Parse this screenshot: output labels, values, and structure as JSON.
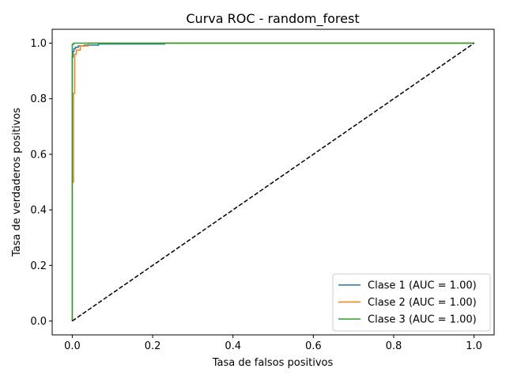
{
  "chart_data": {
    "type": "line",
    "title": "Curva ROC - random_forest",
    "xlabel": "Tasa de falsos positivos",
    "ylabel": "Tasa de verdaderos positivos",
    "xlim": [
      -0.05,
      1.05
    ],
    "ylim": [
      -0.05,
      1.05
    ],
    "xticks": [
      "0.0",
      "0.2",
      "0.4",
      "0.6",
      "0.8",
      "1.0"
    ],
    "yticks": [
      "0.0",
      "0.2",
      "0.4",
      "0.6",
      "0.8",
      "1.0"
    ],
    "xtick_values": [
      0.0,
      0.2,
      0.4,
      0.6,
      0.8,
      1.0
    ],
    "ytick_values": [
      0.0,
      0.2,
      0.4,
      0.6,
      0.8,
      1.0
    ],
    "grid": false,
    "legend_position": "lower-right",
    "diagonal": {
      "x": [
        0,
        1
      ],
      "y": [
        0,
        1
      ],
      "color": "#000000",
      "style": "dashed"
    },
    "series": [
      {
        "name": "Clase 1 (AUC = 1.00)",
        "color": "#1f77b4",
        "x": [
          0.0,
          0.0,
          0.002,
          0.002,
          0.004,
          0.004,
          0.008,
          0.008,
          0.015,
          0.015,
          0.03,
          0.03,
          0.065,
          0.065,
          0.23,
          0.23,
          1.0
        ],
        "y": [
          0.0,
          0.95,
          0.95,
          0.97,
          0.97,
          0.98,
          0.98,
          0.985,
          0.985,
          0.99,
          0.99,
          0.993,
          0.993,
          0.997,
          0.997,
          1.0,
          1.0
        ]
      },
      {
        "name": "Clase 2 (AUC = 1.00)",
        "color": "#ff7f0e",
        "x": [
          0.0,
          0.0,
          0.003,
          0.003,
          0.006,
          0.006,
          0.01,
          0.01,
          0.02,
          0.02,
          0.04,
          0.04,
          1.0
        ],
        "y": [
          0.0,
          0.5,
          0.5,
          0.82,
          0.82,
          0.96,
          0.96,
          0.975,
          0.975,
          0.99,
          0.99,
          1.0,
          1.0
        ]
      },
      {
        "name": "Clase 3 (AUC = 1.00)",
        "color": "#2ca02c",
        "x": [
          0.0,
          0.0,
          0.002,
          0.002,
          0.004,
          0.004,
          1.0
        ],
        "y": [
          0.0,
          0.995,
          0.995,
          0.998,
          0.998,
          1.0,
          1.0
        ]
      }
    ]
  }
}
